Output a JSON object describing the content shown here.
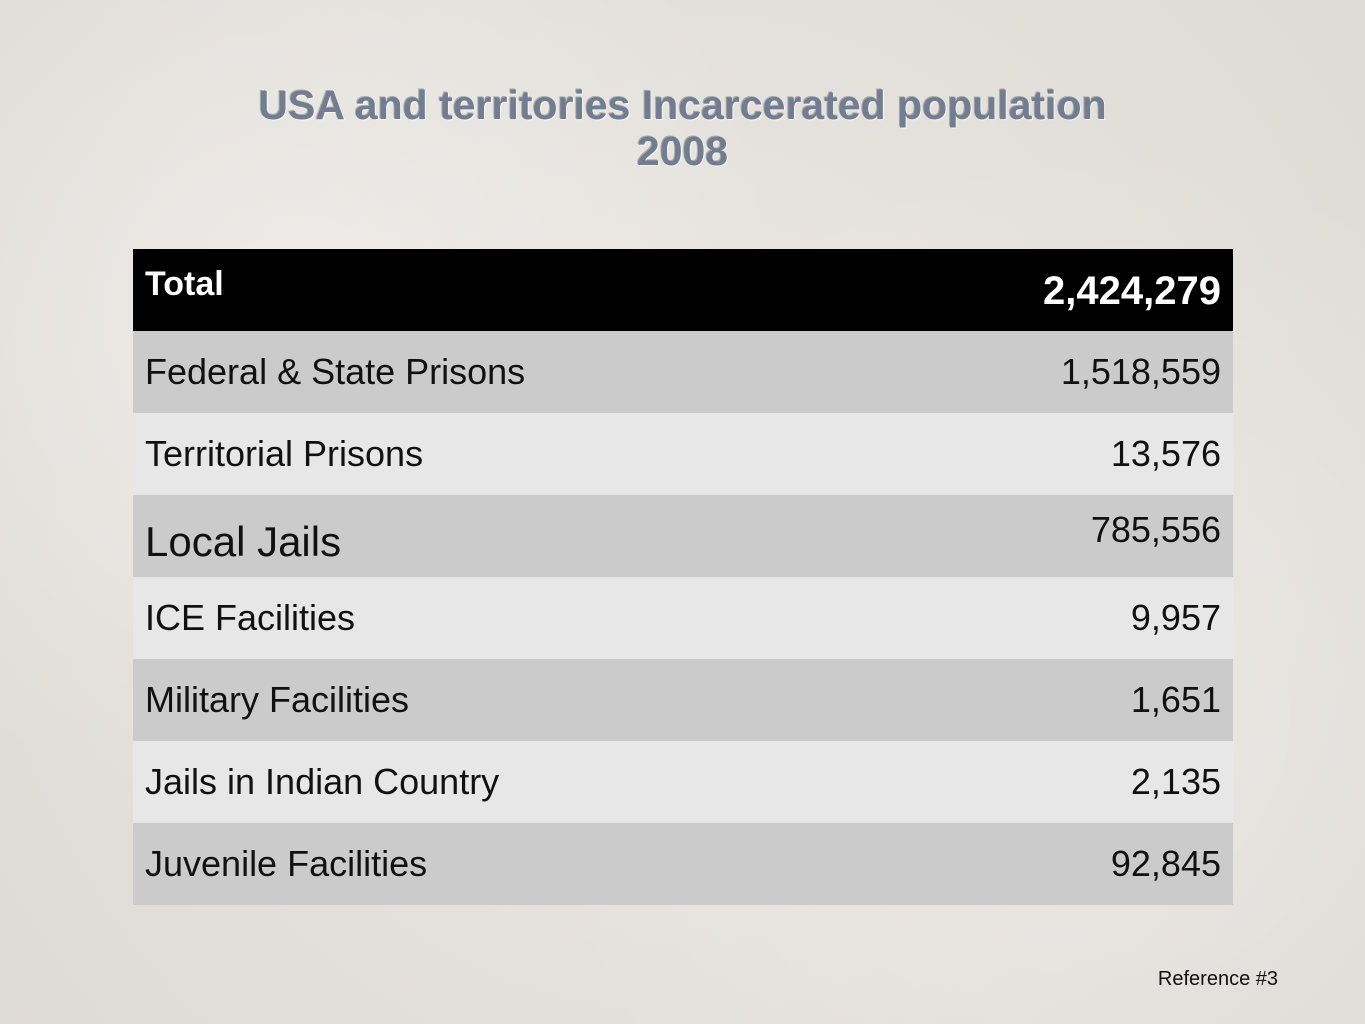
{
  "title": {
    "line1": "USA and territories Incarcerated population",
    "line2": "2008"
  },
  "table": {
    "header": {
      "label": "Total",
      "value": "2,424,279"
    },
    "rows": [
      {
        "label": "Federal & State Prisons",
        "value": "1,518,559"
      },
      {
        "label": "Territorial Prisons",
        "value": "13,576"
      },
      {
        "label": "Local Jails",
        "value": "785,556"
      },
      {
        "label": "ICE Facilities",
        "value": "9,957"
      },
      {
        "label": "Military Facilities",
        "value": "1,651"
      },
      {
        "label": "Jails in Indian Country",
        "value": "2,135"
      },
      {
        "label": "Juvenile Facilities",
        "value": "92,845"
      }
    ]
  },
  "reference": "Reference #3",
  "colors": {
    "title": "#717d91",
    "header_bg": "#000000",
    "row_dark": "#cbcbcb",
    "row_light": "#e7e7e7"
  }
}
